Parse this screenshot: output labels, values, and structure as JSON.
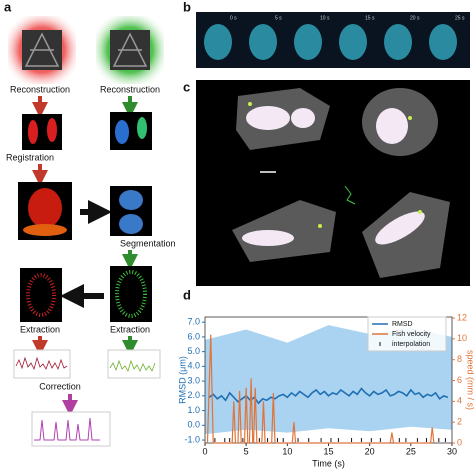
{
  "panels": {
    "a": "a",
    "b": "b",
    "c": "c",
    "d": "d"
  },
  "pipeline": {
    "reconstruction_left": "Reconstruction",
    "reconstruction_right": "Reconstruction",
    "registration": "Registration",
    "segmentation": "Segmentation",
    "extraction_left": "Extraction",
    "extraction_right": "Extraction",
    "correction": "Correction"
  },
  "timelapse": {
    "labels": [
      "0 s",
      "5 s",
      "10 s",
      "15 s",
      "20 s",
      "25 s"
    ]
  },
  "chart_data": {
    "type": "line",
    "xlabel": "Time (s)",
    "ylabel": "RMSD (μm)",
    "y2label": "speed (mm / s)",
    "xlim": [
      0,
      30
    ],
    "xticks": [
      0,
      5,
      10,
      15,
      20,
      25,
      30
    ],
    "ylim": [
      -1.2,
      7.35
    ],
    "yticks": [
      {
        "value": -1,
        "label": "-1.0"
      },
      {
        "value": 0,
        "label": "0.0"
      },
      {
        "value": 1,
        "label": "1.0"
      },
      {
        "value": 2,
        "label": "2.0"
      },
      {
        "value": 3,
        "label": "3.0"
      },
      {
        "value": 4,
        "label": "4.0"
      },
      {
        "value": 5,
        "label": "5.0"
      },
      {
        "value": 6,
        "label": "6.0"
      },
      {
        "value": 7,
        "label": "7.0"
      }
    ],
    "y2lim": [
      0,
      12.1
    ],
    "y2ticks": [
      0,
      2,
      4,
      6,
      8,
      10,
      12
    ],
    "range": {
      "color": "#a9d3f0",
      "x": [
        0,
        5,
        10,
        15,
        20,
        25,
        30
      ],
      "lower": [
        -0.6,
        -0.3,
        -0.5,
        -0.2,
        -0.4,
        -0.1,
        -0.3
      ],
      "upper": [
        5.8,
        6.5,
        5.6,
        6.8,
        6.2,
        6.6,
        6.0
      ]
    },
    "series": [
      {
        "name": "RMSD",
        "color": "#1f6fb4",
        "x": [
          0.5,
          1,
          1.5,
          2,
          2.5,
          3,
          3.5,
          4,
          4.5,
          5,
          5.5,
          6,
          6.5,
          7,
          7.5,
          8,
          8.5,
          9,
          9.5,
          10,
          10.5,
          11,
          11.5,
          12,
          12.5,
          13,
          13.5,
          14,
          14.5,
          15,
          15.5,
          16,
          16.5,
          17,
          17.5,
          18,
          18.5,
          19,
          19.5,
          20,
          20.5,
          21,
          21.5,
          22,
          22.5,
          23,
          23.5,
          24,
          24.5,
          25,
          25.5,
          26,
          26.5,
          27,
          27.5,
          28,
          28.5,
          29,
          29.5
        ],
        "values": [
          1.9,
          2.1,
          1.8,
          2.0,
          1.7,
          2.2,
          1.9,
          1.6,
          1.8,
          2.0,
          1.7,
          1.9,
          1.5,
          1.8,
          1.7,
          1.9,
          1.8,
          2.0,
          2.1,
          1.9,
          2.2,
          2.0,
          2.3,
          2.1,
          1.9,
          2.2,
          2.4,
          2.1,
          2.3,
          2.0,
          2.2,
          2.1,
          2.4,
          2.2,
          2.0,
          2.3,
          2.1,
          2.5,
          2.2,
          2.0,
          2.3,
          2.1,
          2.2,
          2.4,
          2.0,
          2.1,
          2.3,
          2.2,
          2.0,
          2.4,
          2.1,
          2.2,
          1.9,
          2.1,
          2.0,
          2.2,
          1.8,
          2.0,
          1.9
        ]
      },
      {
        "name": "Fish velocity",
        "color": "#e0743a",
        "axis": "y2",
        "x": [
          0.3,
          0.7,
          1.0,
          3.3,
          3.5,
          3.7,
          4.0,
          4.2,
          4.4,
          4.8,
          5.0,
          5.2,
          5.4,
          5.6,
          5.8,
          5.9,
          6.1,
          6.3,
          6.9,
          7.1,
          7.3,
          8.1,
          8.3,
          8.5,
          10.6,
          10.8,
          11.0,
          22.5,
          22.7,
          22.9,
          27.4,
          27.6,
          27.8
        ],
        "values": [
          0,
          10.4,
          0,
          0,
          4,
          0,
          0,
          5,
          0,
          0,
          5.3,
          0,
          0,
          6.2,
          0,
          0,
          5.3,
          0,
          0,
          4,
          0,
          0,
          4.8,
          0,
          0,
          2,
          0,
          0,
          1,
          0,
          0,
          1.5,
          0
        ]
      },
      {
        "name": "interpolation",
        "color": "#111111",
        "marker": "tick",
        "x": [
          1.2,
          2.4,
          3.0,
          4.6,
          6.6,
          7.6,
          8.8,
          9.5,
          11.3,
          12.6,
          14.1,
          15.3,
          16.2,
          17.8,
          19.0,
          20.2,
          21.3,
          23.6,
          24.4,
          25.8,
          26.9,
          28.4,
          29.2
        ],
        "values": [
          -1,
          -1,
          -1,
          -1,
          -1,
          -1,
          -1,
          -1,
          -1,
          -1,
          -1,
          -1,
          -1,
          -1,
          -1,
          -1,
          -1,
          -1,
          -1,
          -1,
          -1,
          -1,
          -1
        ]
      }
    ]
  }
}
